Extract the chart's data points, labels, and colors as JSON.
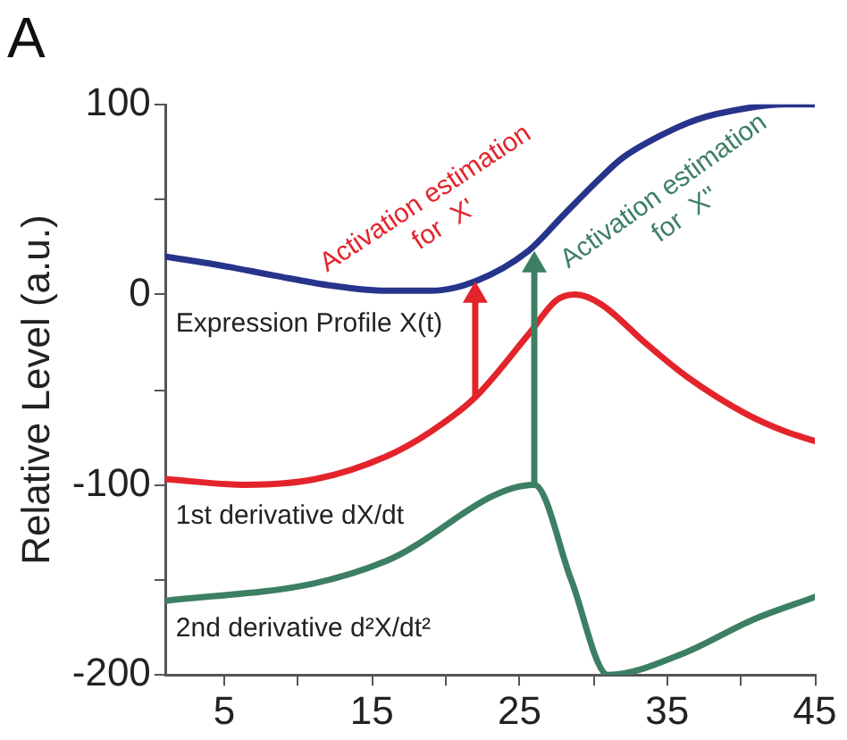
{
  "chart_data": {
    "type": "line",
    "title": "A",
    "ylabel": "Relative Level (a.u.)",
    "xlim": [
      1,
      45
    ],
    "ylim": [
      -200,
      100
    ],
    "xticks": [
      5,
      {
        "value": 10,
        "label": null
      },
      15,
      {
        "value": 20,
        "label": null
      },
      25,
      {
        "value": 30,
        "label": null
      },
      35,
      {
        "value": 40,
        "label": null
      },
      45
    ],
    "yticks": [
      -200,
      {
        "value": -150,
        "label": null
      },
      -100,
      {
        "value": -50,
        "label": null
      },
      0,
      {
        "value": 50,
        "label": null
      },
      100
    ],
    "grid": false,
    "legend": false,
    "marker": "none",
    "line_style": "solid",
    "series": [
      {
        "name": "Expression Profile X(t)",
        "color": "#27348b",
        "x": [
          1,
          5,
          8.4,
          12,
          16,
          19,
          22,
          25.6,
          28,
          30.3,
          32,
          34.4,
          37,
          40.4,
          43,
          45
        ],
        "values": [
          20,
          15,
          10,
          5,
          2,
          2,
          7,
          23,
          42,
          60,
          72,
          83,
          92,
          98,
          100,
          100
        ]
      },
      {
        "name": "1st derivative dX/dt",
        "color": "#e3242b",
        "x": [
          1,
          6.4,
          11.2,
          16,
          19,
          22,
          25.6,
          27.5,
          28.8,
          30.5,
          33.6,
          36.3,
          40.4,
          43,
          45
        ],
        "values": [
          -97,
          -100,
          -97,
          -85,
          -72,
          -54,
          -21,
          -3,
          0,
          -5,
          -26,
          -43,
          -63,
          -72,
          -77
        ]
      },
      {
        "name": "2nd derivative d²X/dt²",
        "color": "#3d7f63",
        "x": [
          1,
          11,
          16,
          26,
          28.5,
          31,
          36,
          40.8,
          45
        ],
        "values": [
          -161,
          -152,
          -140,
          -100,
          -150,
          -200,
          -189,
          -171,
          -159
        ]
      }
    ],
    "annotations": [
      {
        "text": "Activation estimation\nfor  X'",
        "x": 22,
        "y": 7
      },
      {
        "text": "Activation estimation\nfor  X''",
        "x": 26,
        "y": 23
      }
    ]
  }
}
